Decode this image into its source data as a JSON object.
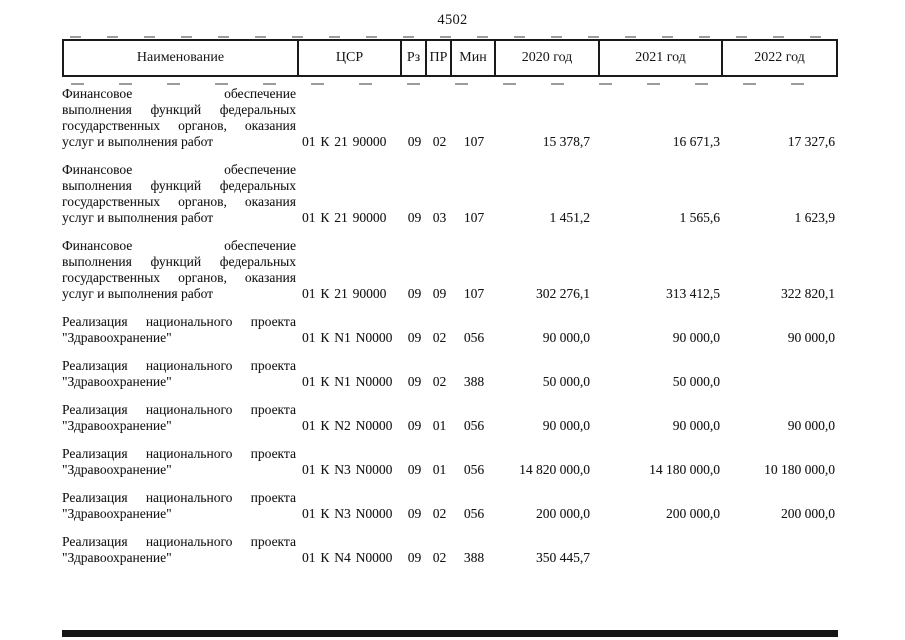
{
  "page": {
    "number": "4502"
  },
  "table": {
    "headers": [
      "Наименование",
      "ЦСР",
      "Рз",
      "ПР",
      "Мин",
      "2020 год",
      "2021 год",
      "2022 год"
    ],
    "rows": [
      {
        "name_lines": [
          "Финансовое обеспечение",
          "выполнения функций федеральных",
          "государственных органов, оказания",
          "услуг и выполнения работ"
        ],
        "csr": "01 К 21 90000",
        "rz": "09",
        "pr": "02",
        "min": "107",
        "y2020": "15 378,7",
        "y2021": "16 671,3",
        "y2022": "17 327,6"
      },
      {
        "name_lines": [
          "Финансовое обеспечение",
          "выполнения функций федеральных",
          "государственных органов, оказания",
          "услуг и выполнения работ"
        ],
        "csr": "01 К 21 90000",
        "rz": "09",
        "pr": "03",
        "min": "107",
        "y2020": "1 451,2",
        "y2021": "1 565,6",
        "y2022": "1 623,9"
      },
      {
        "name_lines": [
          "Финансовое обеспечение",
          "выполнения функций федеральных",
          "государственных органов, оказания",
          "услуг и выполнения работ"
        ],
        "csr": "01 К 21 90000",
        "rz": "09",
        "pr": "09",
        "min": "107",
        "y2020": "302 276,1",
        "y2021": "313 412,5",
        "y2022": "322 820,1"
      },
      {
        "name_lines": [
          "Реализация национального проекта",
          "\"Здравоохранение\""
        ],
        "csr": "01 К N1 N0000",
        "rz": "09",
        "pr": "02",
        "min": "056",
        "y2020": "90 000,0",
        "y2021": "90 000,0",
        "y2022": "90 000,0"
      },
      {
        "name_lines": [
          "Реализация национального проекта",
          "\"Здравоохранение\""
        ],
        "csr": "01 К N1 N0000",
        "rz": "09",
        "pr": "02",
        "min": "388",
        "y2020": "50 000,0",
        "y2021": "50 000,0",
        "y2022": ""
      },
      {
        "name_lines": [
          "Реализация национального проекта",
          "\"Здравоохранение\""
        ],
        "csr": "01 К N2 N0000",
        "rz": "09",
        "pr": "01",
        "min": "056",
        "y2020": "90 000,0",
        "y2021": "90 000,0",
        "y2022": "90 000,0"
      },
      {
        "name_lines": [
          "Реализация национального проекта",
          "\"Здравоохранение\""
        ],
        "csr": "01 К N3 N0000",
        "rz": "09",
        "pr": "01",
        "min": "056",
        "y2020": "14 820 000,0",
        "y2021": "14 180 000,0",
        "y2022": "10 180 000,0"
      },
      {
        "name_lines": [
          "Реализация национального проекта",
          "\"Здравоохранение\""
        ],
        "csr": "01 К N3 N0000",
        "rz": "09",
        "pr": "02",
        "min": "056",
        "y2020": "200 000,0",
        "y2021": "200 000,0",
        "y2022": "200 000,0"
      },
      {
        "name_lines": [
          "Реализация национального проекта",
          "\"Здравоохранение\""
        ],
        "csr": "01 К N4 N0000",
        "rz": "09",
        "pr": "02",
        "min": "388",
        "y2020": "350 445,7",
        "y2021": "",
        "y2022": ""
      }
    ]
  }
}
